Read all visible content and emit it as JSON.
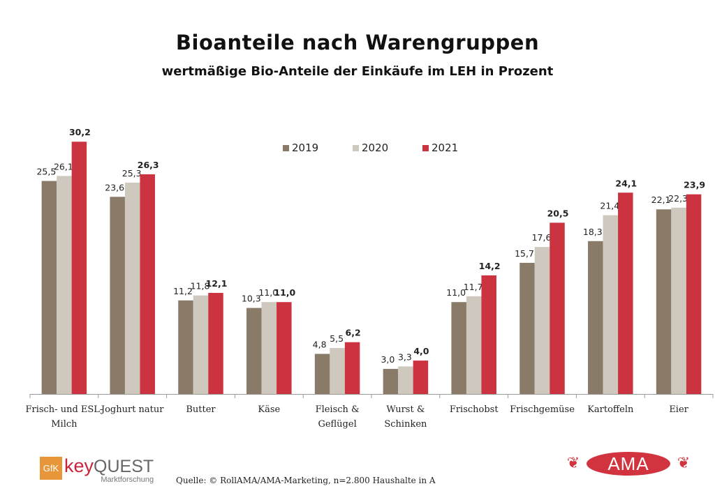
{
  "header": {
    "title": "Bioanteile nach Warengruppen",
    "subtitle": "wertmäßige Bio-Anteile der Einkäufe im LEH in Prozent"
  },
  "legend": [
    {
      "label": "2019",
      "color": "#8a7a68"
    },
    {
      "label": "2020",
      "color": "#cfc8bf"
    },
    {
      "label": "2021",
      "color": "#cc3340"
    }
  ],
  "chart_data": {
    "type": "bar",
    "title": "Bioanteile nach Warengruppen",
    "subtitle": "wertmäßige Bio-Anteile der Einkäufe im LEH in Prozent",
    "xlabel": "",
    "ylabel": "",
    "ylim": [
      0,
      32
    ],
    "grid": false,
    "legend_position": "top-center",
    "categories": [
      "Frisch- und ESL-Milch",
      "Joghurt natur",
      "Butter",
      "Käse",
      "Fleisch & Geflügel",
      "Wurst & Schinken",
      "Frischobst",
      "Frischgemüse",
      "Kartoffeln",
      "Eier"
    ],
    "category_lines": [
      [
        "Frisch- und ESL-",
        "Milch"
      ],
      [
        "Joghurt natur"
      ],
      [
        "Butter"
      ],
      [
        "Käse"
      ],
      [
        "Fleisch &",
        "Geflügel"
      ],
      [
        "Wurst &",
        "Schinken"
      ],
      [
        "Frischobst"
      ],
      [
        "Frischgemüse"
      ],
      [
        "Kartoffeln"
      ],
      [
        "Eier"
      ]
    ],
    "series": [
      {
        "name": "2019",
        "color": "#8a7a68",
        "values": [
          25.5,
          23.6,
          11.2,
          10.3,
          4.8,
          3.0,
          11.0,
          15.7,
          18.3,
          22.1
        ],
        "labels": [
          "25,5",
          "23,6",
          "11,2",
          "10,3",
          "4,8",
          "3,0",
          "11,0",
          "15,7",
          "18,3",
          "22,1"
        ],
        "bold": false
      },
      {
        "name": "2020",
        "color": "#cfc8bf",
        "values": [
          26.1,
          25.3,
          11.8,
          11.0,
          5.5,
          3.3,
          11.7,
          17.6,
          21.4,
          22.3
        ],
        "labels": [
          "26,1",
          "25,3",
          "11,8",
          "11,0",
          "5,5",
          "3,3",
          "11,7",
          "17,6",
          "21,4",
          "22,3"
        ],
        "bold": false
      },
      {
        "name": "2021",
        "color": "#cc3340",
        "values": [
          30.2,
          26.3,
          12.1,
          11.0,
          6.2,
          4.0,
          14.2,
          20.5,
          24.1,
          23.9
        ],
        "labels": [
          "30,2",
          "26,3",
          "12,1",
          "11,0",
          "6,2",
          "4,0",
          "14,2",
          "20,5",
          "24,1",
          "23,9"
        ],
        "bold": true
      }
    ]
  },
  "footer": {
    "source": "Quelle: © RollAMA/AMA-Marketing, n=2.800 Haushalte in A",
    "gfk_box": "GfK",
    "gfk_key": "key",
    "gfk_quest": "QUEST",
    "gfk_sub": "Marktforschung",
    "ama": "AMA"
  }
}
